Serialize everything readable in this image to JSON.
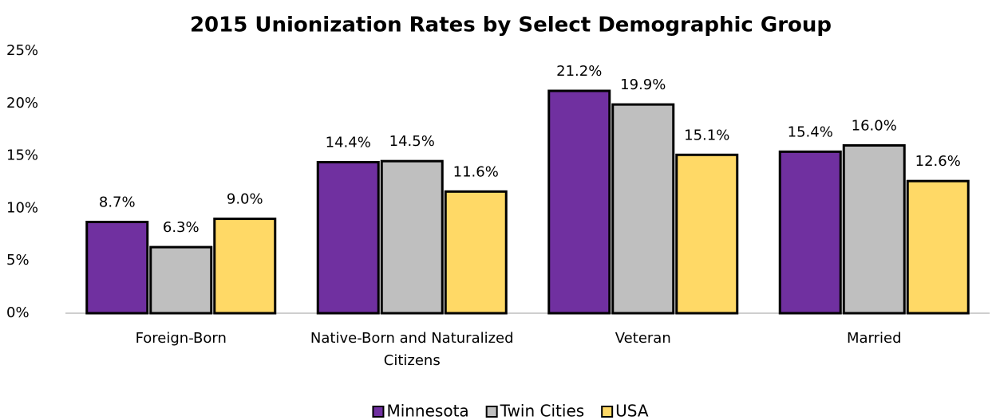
{
  "chart_data": {
    "type": "bar",
    "title": "2015 Unionization Rates by Select Demographic Group",
    "categories": [
      "Foreign-Born",
      "Native-Born and Naturalized Citizens",
      "Veteran",
      "Married"
    ],
    "series": [
      {
        "name": "Minnesota",
        "color": "#7030a0",
        "values": [
          8.7,
          14.4,
          21.2,
          15.4
        ],
        "value_labels": [
          "8.7%",
          "14.4%",
          "21.2%",
          "15.4%"
        ]
      },
      {
        "name": "Twin Cities",
        "color": "#bfbfbf",
        "values": [
          6.3,
          14.5,
          19.9,
          16.0
        ],
        "value_labels": [
          "6.3%",
          "14.5%",
          "19.9%",
          "16.0%"
        ]
      },
      {
        "name": "USA",
        "color": "#ffd966",
        "values": [
          9.0,
          11.6,
          15.1,
          12.6
        ],
        "value_labels": [
          "9.0%",
          "11.6%",
          "15.1%",
          "12.6%"
        ]
      }
    ],
    "ylim": [
      0,
      25
    ],
    "yticks": [
      {
        "value": 0,
        "label": "0%"
      },
      {
        "value": 5,
        "label": "5%"
      },
      {
        "value": 10,
        "label": "10%"
      },
      {
        "value": 15,
        "label": "15%"
      },
      {
        "value": 20,
        "label": "20%"
      },
      {
        "value": 25,
        "label": "25%"
      }
    ],
    "grid": false,
    "legend": "bottom"
  }
}
